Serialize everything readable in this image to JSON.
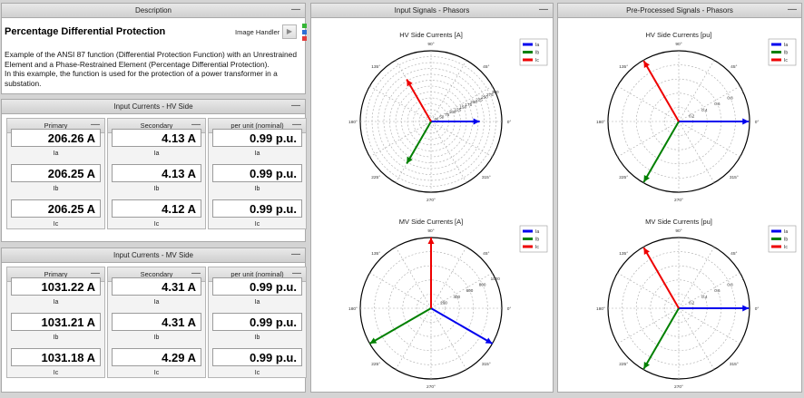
{
  "description": {
    "header": "Description",
    "title": "Percentage Differential Protection",
    "text": "Example of the ANSI 87 function (Differential Protection Function) with an Unrestrained Element and a Phase-Restrained Element (Percentage Differential Protection).\nIn this example, the function is used for the protection of a power transformer in a substation.",
    "image_handler_label": "Image Handler",
    "image_handler_icon": "play-icon",
    "indicator_colors": [
      "#35b535",
      "#2b6fd6",
      "#e23b3b"
    ]
  },
  "hv_panel": {
    "header": "Input Currents - HV Side",
    "columns": [
      {
        "title": "Primary",
        "values": [
          "206.26 A",
          "206.25 A",
          "206.25 A"
        ]
      },
      {
        "title": "Secondary",
        "values": [
          "4.13 A",
          "4.13 A",
          "4.12 A"
        ]
      },
      {
        "title": "per unit (nominal)",
        "values": [
          "0.99 p.u.",
          "0.99 p.u.",
          "0.99 p.u."
        ]
      }
    ],
    "labels": [
      "Ia",
      "Ib",
      "Ic"
    ]
  },
  "mv_panel": {
    "header": "Input Currents - MV Side",
    "columns": [
      {
        "title": "Primary",
        "values": [
          "1031.22 A",
          "1031.21 A",
          "1031.18 A"
        ]
      },
      {
        "title": "Secondary",
        "values": [
          "4.31 A",
          "4.31 A",
          "4.29 A"
        ]
      },
      {
        "title": "per unit (nominal)",
        "values": [
          "0.99 p.u.",
          "0.99 p.u.",
          "0.99 p.u."
        ]
      }
    ],
    "labels": [
      "Ia",
      "Ib",
      "Ic"
    ]
  },
  "input_phasors": {
    "header": "Input Signals - Phasors"
  },
  "pre_phasors": {
    "header": "Pre-Processed Signals - Phasors"
  },
  "minimize_symbol": "—",
  "chart_data": [
    {
      "type": "polar",
      "title": "HV Side Currents [A]",
      "legend": [
        "Ia",
        "Ib",
        "Ic"
      ],
      "colors": [
        "#0000ee",
        "#008000",
        "#ee0000"
      ],
      "angle_labels": [
        "0°",
        "45°",
        "90°",
        "135°",
        "180°",
        "225°",
        "270°",
        "315°"
      ],
      "radial_labels": [
        "25",
        "50",
        "75",
        "100",
        "125",
        "150",
        "175",
        "200",
        "225",
        "250",
        "275",
        "300"
      ],
      "rmax": 300,
      "phasors": [
        {
          "name": "Ia",
          "magnitude": 206.26,
          "angle": 0
        },
        {
          "name": "Ib",
          "magnitude": 206.25,
          "angle": 240
        },
        {
          "name": "Ic",
          "magnitude": 206.25,
          "angle": 120
        }
      ]
    },
    {
      "type": "polar",
      "title": "MV Side Currents [A]",
      "legend": [
        "Ia",
        "Ib",
        "Ic"
      ],
      "colors": [
        "#0000ee",
        "#008000",
        "#ee0000"
      ],
      "angle_labels": [
        "0°",
        "45°",
        "90°",
        "135°",
        "180°",
        "225°",
        "270°",
        "315°"
      ],
      "radial_labels": [
        "200",
        "400",
        "600",
        "800",
        "1000"
      ],
      "rmax": 1000,
      "phasors": [
        {
          "name": "Ia",
          "magnitude": 1031.22,
          "angle": -30
        },
        {
          "name": "Ib",
          "magnitude": 1031.21,
          "angle": 210
        },
        {
          "name": "Ic",
          "magnitude": 1031.18,
          "angle": 90
        }
      ]
    },
    {
      "type": "polar",
      "title": "HV Side Currents [pu]",
      "legend": [
        "Ia",
        "Ib",
        "Ic"
      ],
      "colors": [
        "#0000ee",
        "#008000",
        "#ee0000"
      ],
      "angle_labels": [
        "0°",
        "45°",
        "90°",
        "135°",
        "180°",
        "225°",
        "270°",
        "315°"
      ],
      "radial_labels": [
        "0.2",
        "0.4",
        "0.6",
        "0.8",
        "1"
      ],
      "rmax": 1,
      "phasors": [
        {
          "name": "Ia",
          "magnitude": 0.99,
          "angle": 0
        },
        {
          "name": "Ib",
          "magnitude": 0.99,
          "angle": 240
        },
        {
          "name": "Ic",
          "magnitude": 0.99,
          "angle": 120
        }
      ]
    },
    {
      "type": "polar",
      "title": "MV Side Currents [pu]",
      "legend": [
        "Ia",
        "Ib",
        "Ic"
      ],
      "colors": [
        "#0000ee",
        "#008000",
        "#ee0000"
      ],
      "angle_labels": [
        "0°",
        "45°",
        "90°",
        "135°",
        "180°",
        "225°",
        "270°",
        "315°"
      ],
      "radial_labels": [
        "0.2",
        "0.4",
        "0.6",
        "0.8",
        "1"
      ],
      "rmax": 1,
      "phasors": [
        {
          "name": "Ia",
          "magnitude": 0.99,
          "angle": 0
        },
        {
          "name": "Ib",
          "magnitude": 0.99,
          "angle": 240
        },
        {
          "name": "Ic",
          "magnitude": 0.99,
          "angle": 120
        }
      ]
    }
  ]
}
